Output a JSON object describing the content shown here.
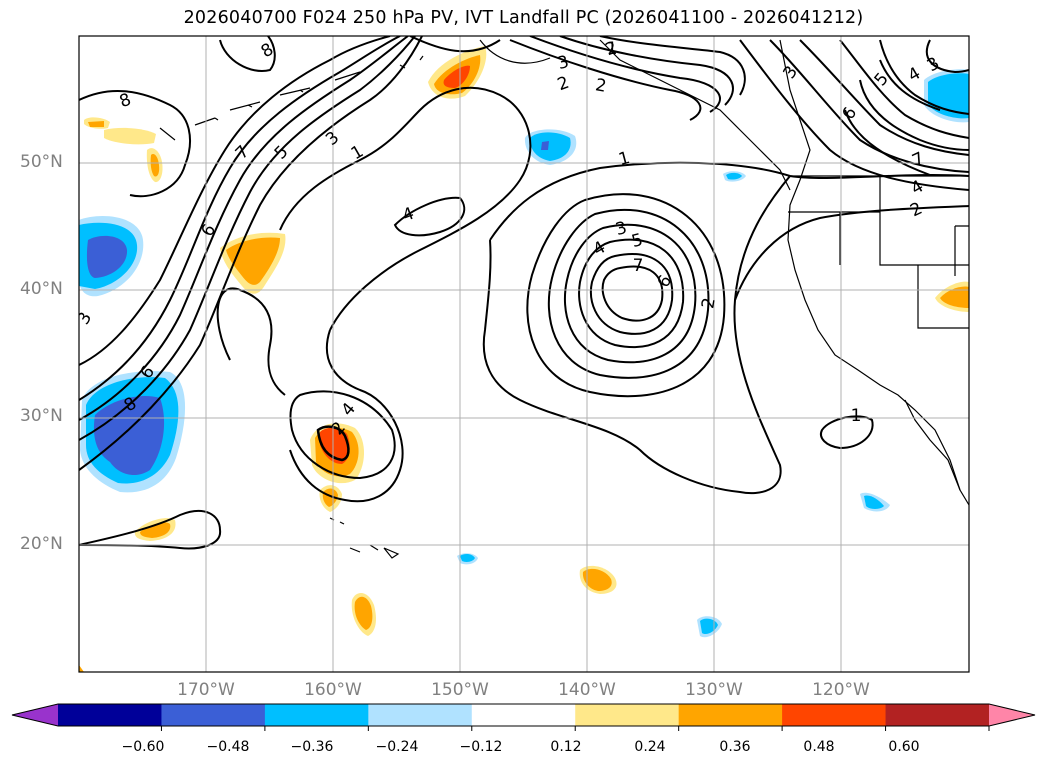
{
  "title": "2026040700 F024 250 hPa PV, IVT Landfall PC (2026041100 - 2026041212)",
  "map": {
    "lat_labels": [
      "50°N",
      "40°N",
      "30°N",
      "20°N"
    ],
    "lon_labels": [
      "170°W",
      "160°W",
      "150°W",
      "140°W",
      "130°W",
      "120°W"
    ],
    "contour_labels": [
      "8",
      "8",
      "6",
      "7",
      "5",
      "3",
      "1",
      "6",
      "4",
      "2",
      "2",
      "3",
      "4",
      "2",
      "1",
      "3",
      "4",
      "5",
      "7",
      "6",
      "2",
      "1",
      "3",
      "5",
      "4",
      "3",
      "6",
      "7",
      "4",
      "2",
      "2",
      "3",
      "8",
      "1"
    ],
    "grid": true,
    "extent": {
      "lon": [
        -180,
        -110
      ],
      "lat": [
        10,
        60
      ]
    }
  },
  "colorbar": {
    "ticks": [
      "−0.60",
      "−0.48",
      "−0.36",
      "−0.24",
      "−0.12",
      "0.12",
      "0.24",
      "0.36",
      "0.48",
      "0.60"
    ],
    "values": [
      -0.6,
      -0.48,
      -0.36,
      -0.24,
      -0.12,
      0.12,
      0.24,
      0.36,
      0.48,
      0.6
    ],
    "colors": [
      "#9933cc",
      "#000099",
      "#3b5fd6",
      "#00bfff",
      "#b0e2ff",
      "#ffffff",
      "#ffe88a",
      "#ffa500",
      "#ff4500",
      "#b22222",
      "#ff85a8"
    ]
  }
}
